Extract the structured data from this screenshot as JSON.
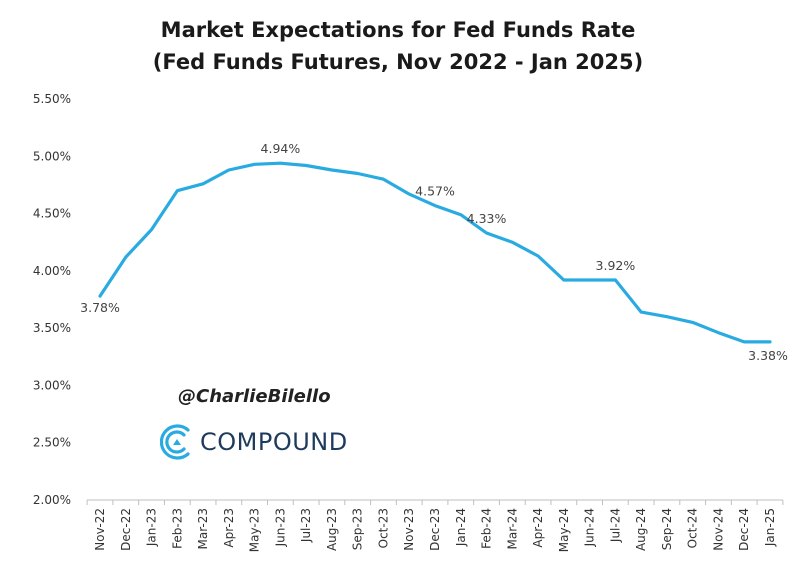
{
  "title": {
    "line1": "Market Expectations for Fed Funds Rate",
    "line2": "(Fed Funds Futures, Nov 2022 - Jan 2025)"
  },
  "attribution": {
    "handle": "@CharlieBilello",
    "logo_text": "COMPOUND",
    "logo_icon": "compound-logo-icon"
  },
  "colors": {
    "line": "#29ABE2",
    "logo": "#1f3b5c"
  },
  "chart_data": {
    "type": "line",
    "title": "Market Expectations for Fed Funds Rate (Fed Funds Futures, Nov 2022 - Jan 2025)",
    "xlabel": "",
    "ylabel": "",
    "ylim": [
      2.0,
      5.5
    ],
    "yticks": [
      "2.00%",
      "2.50%",
      "3.00%",
      "3.50%",
      "4.00%",
      "4.50%",
      "5.00%",
      "5.50%"
    ],
    "grid": false,
    "categories": [
      "Nov-22",
      "Dec-22",
      "Jan-23",
      "Feb-23",
      "Mar-23",
      "Apr-23",
      "May-23",
      "Jun-23",
      "Jul-23",
      "Aug-23",
      "Sep-23",
      "Oct-23",
      "Nov-23",
      "Dec-23",
      "Jan-24",
      "Feb-24",
      "Mar-24",
      "Apr-24",
      "May-24",
      "Jun-24",
      "Jul-24",
      "Aug-24",
      "Sep-24",
      "Oct-24",
      "Nov-24",
      "Dec-24",
      "Jan-25"
    ],
    "series": [
      {
        "name": "Fed Funds Futures",
        "values": [
          3.78,
          4.12,
          4.36,
          4.7,
          4.76,
          4.88,
          4.93,
          4.94,
          4.92,
          4.88,
          4.85,
          4.8,
          4.67,
          4.57,
          4.49,
          4.33,
          4.25,
          4.13,
          3.92,
          3.92,
          3.92,
          3.64,
          3.6,
          3.55,
          3.46,
          3.38,
          3.38
        ]
      }
    ],
    "data_labels": [
      {
        "index": 0,
        "text": "3.78%"
      },
      {
        "index": 7,
        "text": "4.94%"
      },
      {
        "index": 13,
        "text": "4.57%"
      },
      {
        "index": 15,
        "text": "4.33%"
      },
      {
        "index": 20,
        "text": "3.92%"
      },
      {
        "index": 26,
        "text": "3.38%"
      }
    ]
  }
}
